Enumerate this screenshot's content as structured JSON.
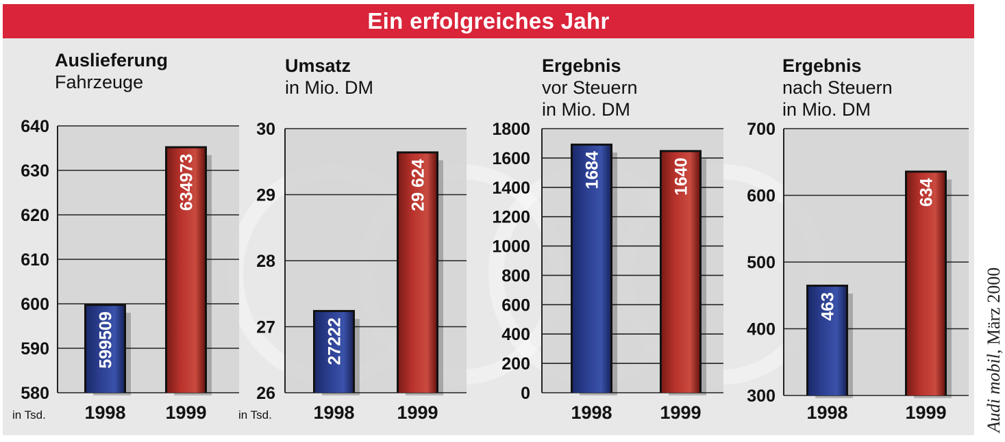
{
  "header": {
    "title": "Ein erfolgreiches Jahr"
  },
  "source": {
    "publication": "Audi mobil",
    "date": "März 2000"
  },
  "colors": {
    "banner": "#d9243a",
    "bar_1998": "#2b3e8f",
    "bar_1999": "#b8322c",
    "plot_bg": "#d3d3d3",
    "page_bg": "#e8e8e8"
  },
  "chart_data": [
    {
      "type": "bar",
      "title": "Auslieferung",
      "subtitle_lines": [
        "Fahrzeuge"
      ],
      "unit_note": "in Tsd.",
      "categories": [
        "1998",
        "1999"
      ],
      "values": [
        599.509,
        634.973
      ],
      "value_labels": [
        "599509",
        "634973"
      ],
      "ylim": [
        580,
        640
      ],
      "yticks": [
        580,
        590,
        600,
        610,
        620,
        630,
        640
      ],
      "ytick_labels": [
        "580",
        "590",
        "600",
        "610",
        "620",
        "630",
        "640"
      ],
      "grid": true
    },
    {
      "type": "bar",
      "title": "Umsatz",
      "subtitle_lines": [
        "in Mio. DM"
      ],
      "unit_note": "in Tsd.",
      "categories": [
        "1998",
        "1999"
      ],
      "values": [
        27.222,
        29.624
      ],
      "value_labels": [
        "27222",
        "29 624"
      ],
      "ylim": [
        26,
        30
      ],
      "yticks": [
        26,
        27,
        28,
        29,
        30
      ],
      "ytick_labels": [
        "26",
        "27",
        "28",
        "29",
        "30"
      ],
      "grid": true
    },
    {
      "type": "bar",
      "title": "Ergebnis",
      "subtitle_lines": [
        "vor Steuern",
        "in Mio. DM"
      ],
      "unit_note": "",
      "categories": [
        "1998",
        "1999"
      ],
      "values": [
        1684,
        1640
      ],
      "value_labels": [
        "1684",
        "1640"
      ],
      "ylim": [
        0,
        1800
      ],
      "yticks": [
        0,
        200,
        400,
        600,
        800,
        1000,
        1200,
        1400,
        1600,
        1800
      ],
      "ytick_labels": [
        "0",
        "200",
        "400",
        "600",
        "800",
        "1000",
        "1200",
        "1400",
        "1600",
        "1800"
      ],
      "grid": true
    },
    {
      "type": "bar",
      "title": "Ergebnis",
      "subtitle_lines": [
        "nach Steuern",
        "in Mio. DM"
      ],
      "unit_note": "",
      "categories": [
        "1998",
        "1999"
      ],
      "values": [
        463,
        634
      ],
      "value_labels": [
        "463",
        "634"
      ],
      "ylim": [
        300,
        700
      ],
      "yticks": [
        300,
        400,
        500,
        600,
        700
      ],
      "ytick_labels": [
        "300",
        "400",
        "500",
        "600",
        "700"
      ],
      "grid": true
    }
  ]
}
